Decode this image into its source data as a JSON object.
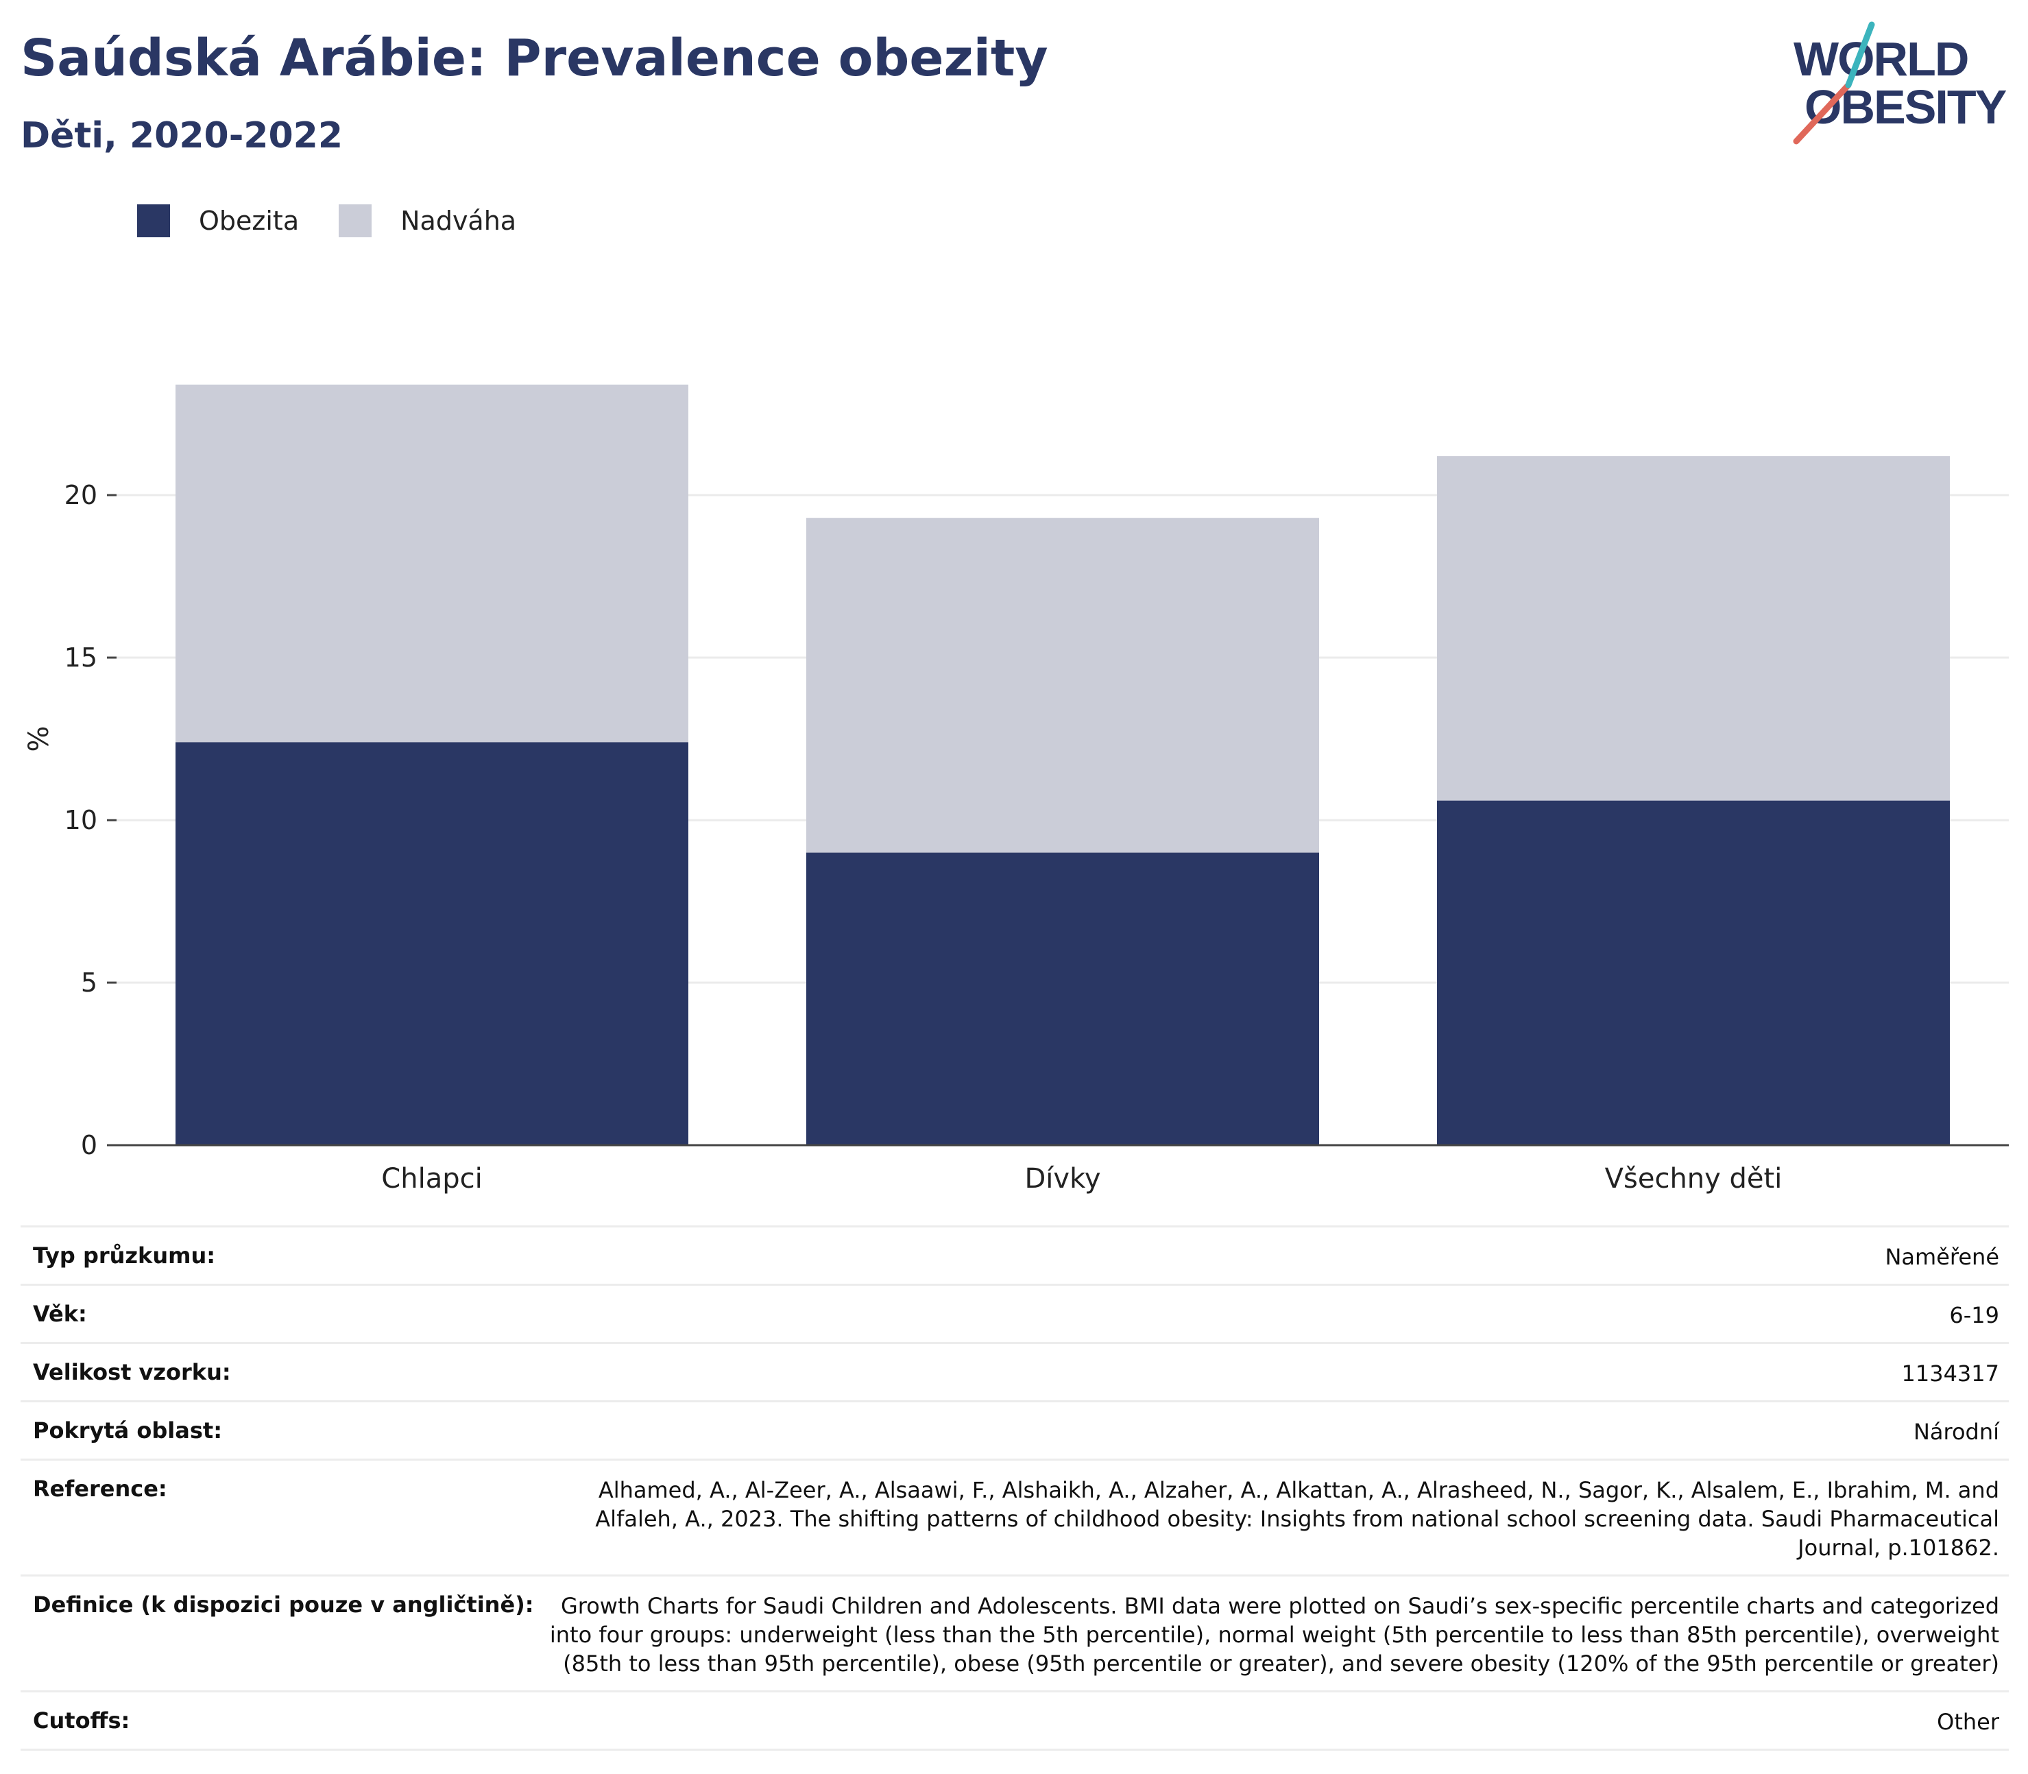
{
  "header": {
    "title": "Saúdská Arábie: Prevalence obezity",
    "subtitle": "Děti, 2020-2022",
    "logo_text": "WORLD OBESITY"
  },
  "colors": {
    "obesity": "#2a3764",
    "overweight": "#cbcdd8",
    "title": "#2a3764",
    "logo_slash_red": "#e0685a",
    "logo_slash_teal": "#3cb4bd"
  },
  "legend": [
    {
      "label": "Obezita",
      "color": "#2a3764"
    },
    {
      "label": "Nadváha",
      "color": "#cbcdd8"
    }
  ],
  "chart_data": {
    "type": "bar",
    "stacked": true,
    "categories": [
      "Chlapci",
      "Dívky",
      "Všechny děti"
    ],
    "series": [
      {
        "name": "Obezita",
        "values": [
          12.4,
          9.0,
          10.6
        ]
      },
      {
        "name": "Nadváha",
        "values": [
          11.0,
          10.3,
          10.6
        ]
      }
    ],
    "ylabel": "%",
    "yticks": [
      0,
      5,
      10,
      15,
      20
    ],
    "ylim": [
      0,
      25
    ],
    "grid": true,
    "legend_position": "top-left"
  },
  "info": [
    {
      "label": "Typ průzkumu:",
      "value": "Naměřené"
    },
    {
      "label": "Věk:",
      "value": "6-19"
    },
    {
      "label": "Velikost vzorku:",
      "value": "1134317"
    },
    {
      "label": "Pokrytá oblast:",
      "value": "Národní"
    },
    {
      "label": "Reference:",
      "value": "Alhamed, A., Al-Zeer, A., Alsaawi, F., Alshaikh, A., Alzaher, A., Alkattan, A., Alrasheed, N., Sagor, K., Alsalem, E., Ibrahim, M. and Alfaleh, A., 2023. The shifting patterns of childhood obesity: Insights from national school screening data. Saudi Pharmaceutical Journal, p.101862."
    },
    {
      "label": "Definice (k dispozici pouze v angličtině):",
      "value": "Growth Charts for Saudi Children and Adolescents. BMI data were plotted on Saudi’s sex-specific percentile charts and categorized into four groups: underweight (less than the 5th percentile), normal weight (5th percentile to less than 85th percentile), overweight (85th to less than 95th percentile), obese (95th percentile or greater), and severe obesity (120% of the 95th percentile or greater)"
    },
    {
      "label": "Cutoffs:",
      "value": "Other"
    }
  ]
}
